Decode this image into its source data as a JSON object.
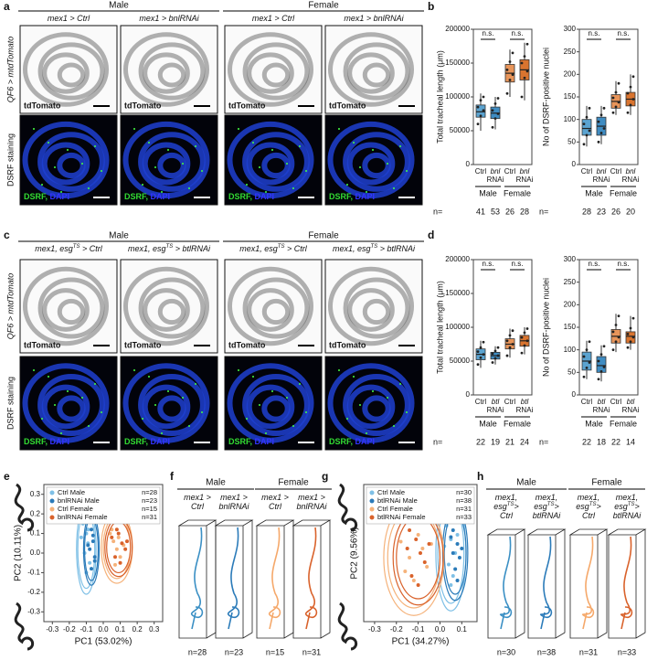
{
  "figure": {
    "panel_letters": [
      "a",
      "b",
      "c",
      "d",
      "e",
      "f",
      "g",
      "h"
    ],
    "a": {
      "sexes": [
        "Male",
        "Female"
      ],
      "columns": [
        [
          [
            "mex1 > Ctrl"
          ]
        ],
        [
          [
            "mex1 > bnlRNAi"
          ]
        ],
        [
          [
            "mex1 > Ctrl"
          ]
        ],
        [
          [
            "mex1 > bnlRNAi"
          ]
        ]
      ],
      "rows": [
        "QF6 > mtdTomato",
        "DSRF staining"
      ],
      "caption_top": "tdTomato",
      "caption_bottom": [
        "DSRF,",
        " DAPI"
      ]
    },
    "c": {
      "sexes": [
        "Male",
        "Female"
      ],
      "columns": [
        [
          [
            "mex1, esg",
            "TS",
            " > Ctrl"
          ]
        ],
        [
          [
            "mex1, esg",
            "TS",
            " > btlRNAi"
          ]
        ],
        [
          [
            "mex1, esg",
            "TS",
            " > Ctrl"
          ]
        ],
        [
          [
            "mex1, esg",
            "TS",
            " > btlRNAi"
          ]
        ]
      ],
      "rows": [
        "QF6 > mtdTomato",
        "DSRF staining"
      ],
      "caption_top": "tdTomato",
      "caption_bottom": [
        "DSRF,",
        " DAPI"
      ]
    },
    "f": {
      "sexes": [
        "Male",
        "Female"
      ],
      "columns": [
        [
          [
            "mex1 >"
          ],
          [
            "Ctrl"
          ]
        ],
        [
          [
            "mex1 >"
          ],
          [
            "bnlRNAi"
          ]
        ],
        [
          [
            "mex1 >"
          ],
          [
            "Ctrl"
          ]
        ],
        [
          [
            "mex1 >"
          ],
          [
            "bnlRNAi"
          ]
        ]
      ],
      "n": [
        "n=28",
        "n=23",
        "n=15",
        "n=31"
      ]
    },
    "h": {
      "sexes": [
        "Male",
        "Female"
      ],
      "columns": [
        [
          [
            "mex1,"
          ],
          [
            "esg",
            "TS",
            ">"
          ],
          [
            "Ctrl"
          ]
        ],
        [
          [
            "mex1,"
          ],
          [
            "esg",
            "TS",
            ">"
          ],
          [
            "btlRNAi"
          ]
        ],
        [
          [
            "mex1,"
          ],
          [
            "esg",
            "TS",
            ">"
          ],
          [
            "Ctrl"
          ]
        ],
        [
          [
            "mex1,"
          ],
          [
            "esg",
            "TS",
            ">"
          ],
          [
            "btlRNAi"
          ]
        ]
      ],
      "n": [
        "n=30",
        "n=38",
        "n=31",
        "n=33"
      ]
    }
  },
  "chart_data": [
    {
      "type": "box",
      "ylabel": "Total tracheal length (μm)",
      "ylim": [
        0,
        200000
      ],
      "yticks": [
        0,
        50000,
        100000,
        150000,
        200000
      ],
      "categories": [
        [
          "Ctrl"
        ],
        [
          "bnl",
          "RNAi"
        ],
        [
          "Ctrl"
        ],
        [
          "bnl",
          "RNAi"
        ]
      ],
      "groups": [
        "Male",
        "Female"
      ],
      "annotations": [
        "n.s.",
        "n.s."
      ],
      "colors": [
        "#5ba3d0",
        "#3f8cc2",
        "#e8955a",
        "#d9742f"
      ],
      "n_label": "n=",
      "n": [
        41,
        53,
        26,
        28
      ],
      "boxes": [
        {
          "min": 50000,
          "q1": 70000,
          "median": 78000,
          "q3": 88000,
          "max": 105000
        },
        {
          "min": 52000,
          "q1": 68000,
          "median": 76000,
          "q3": 85000,
          "max": 100000
        },
        {
          "min": 100000,
          "q1": 122000,
          "median": 135000,
          "q3": 148000,
          "max": 170000
        },
        {
          "min": 95000,
          "q1": 125000,
          "median": 140000,
          "q3": 155000,
          "max": 180000
        }
      ],
      "points": [
        [
          60000,
          72000,
          80000,
          85000,
          95000,
          100000
        ],
        [
          55000,
          68000,
          75000,
          80000,
          90000,
          98000
        ],
        [
          105000,
          125000,
          133000,
          140000,
          152000,
          165000
        ],
        [
          100000,
          128000,
          138000,
          150000,
          160000,
          178000
        ]
      ]
    },
    {
      "type": "box",
      "ylabel": "No of DSRF-positive nuclei",
      "ylim": [
        0,
        300
      ],
      "yticks": [
        0,
        50,
        100,
        150,
        200,
        250,
        300
      ],
      "categories": [
        [
          "Ctrl"
        ],
        [
          "bnl",
          "RNAi"
        ],
        [
          "Ctrl"
        ],
        [
          "bnl",
          "RNAi"
        ]
      ],
      "groups": [
        "Male",
        "Female"
      ],
      "annotations": [
        "n.s.",
        "n.s."
      ],
      "colors": [
        "#5ba3d0",
        "#3f8cc2",
        "#e8955a",
        "#d9742f"
      ],
      "n_label": "n=",
      "n": [
        28,
        23,
        26,
        20
      ],
      "boxes": [
        {
          "min": 40,
          "q1": 65,
          "median": 80,
          "q3": 100,
          "max": 130
        },
        {
          "min": 45,
          "q1": 65,
          "median": 85,
          "q3": 105,
          "max": 130
        },
        {
          "min": 110,
          "q1": 125,
          "median": 140,
          "q3": 155,
          "max": 185
        },
        {
          "min": 110,
          "q1": 130,
          "median": 145,
          "q3": 160,
          "max": 200
        }
      ],
      "points": [
        [
          45,
          65,
          75,
          90,
          105,
          125
        ],
        [
          50,
          70,
          80,
          95,
          110,
          125
        ],
        [
          115,
          128,
          138,
          148,
          160,
          180
        ],
        [
          115,
          132,
          145,
          158,
          172,
          195
        ]
      ]
    },
    {
      "type": "box",
      "ylabel": "Total tracheal length (μm)",
      "ylim": [
        0,
        200000
      ],
      "yticks": [
        0,
        50000,
        100000,
        150000,
        200000
      ],
      "categories": [
        [
          "Ctrl"
        ],
        [
          "btl",
          "RNAi"
        ],
        [
          "Ctrl"
        ],
        [
          "btl",
          "RNAi"
        ]
      ],
      "groups": [
        "Male",
        "Female"
      ],
      "annotations": [
        "n.s.",
        "n.s."
      ],
      "colors": [
        "#5ba3d0",
        "#3f8cc2",
        "#e8955a",
        "#d9742f"
      ],
      "n_label": "n=",
      "n": [
        22,
        19,
        21,
        24
      ],
      "boxes": [
        {
          "min": 40000,
          "q1": 52000,
          "median": 60000,
          "q3": 68000,
          "max": 80000
        },
        {
          "min": 45000,
          "q1": 53000,
          "median": 58000,
          "q3": 63000,
          "max": 72000
        },
        {
          "min": 55000,
          "q1": 68000,
          "median": 75000,
          "q3": 83000,
          "max": 98000
        },
        {
          "min": 60000,
          "q1": 72000,
          "median": 80000,
          "q3": 88000,
          "max": 100000
        }
      ],
      "points": [
        [
          45000,
          55000,
          60000,
          64000,
          70000,
          78000
        ],
        [
          48000,
          54000,
          58000,
          61000,
          65000,
          70000
        ],
        [
          58000,
          70000,
          75000,
          80000,
          88000,
          95000
        ],
        [
          62000,
          73000,
          80000,
          85000,
          92000,
          98000
        ]
      ]
    },
    {
      "type": "box",
      "ylabel": "No of DSRF-positive nuclei",
      "ylim": [
        0,
        300
      ],
      "yticks": [
        0,
        50,
        100,
        150,
        200,
        250,
        300
      ],
      "categories": [
        [
          "Ctrl"
        ],
        [
          "btl",
          "RNAi"
        ],
        [
          "Ctrl"
        ],
        [
          "btl",
          "RNAi"
        ]
      ],
      "groups": [
        "Male",
        "Female"
      ],
      "annotations": [
        "n.s.",
        "n.s."
      ],
      "colors": [
        "#5ba3d0",
        "#3f8cc2",
        "#e8955a",
        "#d9742f"
      ],
      "n_label": "n=",
      "n": [
        22,
        18,
        22,
        14
      ],
      "boxes": [
        {
          "min": 35,
          "q1": 55,
          "median": 75,
          "q3": 95,
          "max": 120
        },
        {
          "min": 30,
          "q1": 50,
          "median": 65,
          "q3": 85,
          "max": 110
        },
        {
          "min": 95,
          "q1": 115,
          "median": 130,
          "q3": 145,
          "max": 180
        },
        {
          "min": 100,
          "q1": 115,
          "median": 130,
          "q3": 140,
          "max": 175
        }
      ],
      "points": [
        [
          40,
          60,
          72,
          85,
          100,
          118
        ],
        [
          35,
          52,
          62,
          75,
          90,
          108
        ],
        [
          100,
          118,
          128,
          140,
          155,
          175
        ],
        [
          105,
          118,
          128,
          135,
          148,
          170
        ]
      ]
    },
    {
      "type": "scatter",
      "xlabel": "PC1 (53.02%)",
      "ylabel": "PC2 (10.11%)",
      "xlim": [
        -0.35,
        0.35
      ],
      "ylim": [
        -0.35,
        0.35
      ],
      "xticks": [
        -0.3,
        -0.2,
        -0.1,
        {
          "value": 0,
          "label": "0.0"
        },
        0.1,
        0.2,
        0.3
      ],
      "yticks": [
        -0.3,
        -0.2,
        -0.1,
        {
          "value": 0,
          "label": "0.0"
        },
        0.1,
        0.2,
        0.3
      ],
      "series": [
        {
          "name": "Ctrl Male",
          "count": "n=28",
          "color": "#7fc0e6",
          "x": [
            -0.12,
            -0.1,
            -0.09,
            -0.11,
            -0.08,
            -0.1,
            -0.13,
            -0.09
          ],
          "y": [
            0.15,
            0.1,
            0.05,
            0.0,
            -0.05,
            -0.1,
            0.08,
            0.12
          ],
          "ellipse": {
            "cx": -0.1,
            "cy": 0.02,
            "rx": 0.05,
            "ry": 0.2
          }
        },
        {
          "name": "bnlRNAi Male",
          "count": "n=23",
          "color": "#2b7bb9",
          "x": [
            -0.07,
            -0.06,
            -0.08,
            -0.05,
            -0.07,
            -0.06,
            -0.09,
            -0.05
          ],
          "y": [
            0.12,
            0.06,
            0.02,
            -0.02,
            -0.08,
            0.09,
            0.04,
            -0.04
          ],
          "ellipse": {
            "cx": -0.07,
            "cy": 0.02,
            "rx": 0.04,
            "ry": 0.16
          }
        },
        {
          "name": "Ctrl Female",
          "count": "n=15",
          "color": "#f5b27a",
          "x": [
            0.04,
            0.06,
            0.08,
            0.1,
            0.05,
            0.12,
            0.07,
            0.09
          ],
          "y": [
            0.1,
            0.06,
            0.02,
            -0.02,
            0.12,
            0.04,
            -0.06,
            0.08
          ],
          "ellipse": {
            "cx": 0.08,
            "cy": 0.03,
            "rx": 0.08,
            "ry": 0.16
          }
        },
        {
          "name": "bnlRNAi Female",
          "count": "n=31",
          "color": "#d9622b",
          "x": [
            0.05,
            0.08,
            0.11,
            0.13,
            0.07,
            0.1,
            0.14,
            0.09
          ],
          "y": [
            0.08,
            0.12,
            0.05,
            0.02,
            -0.02,
            -0.05,
            0.06,
            0.1
          ],
          "ellipse": {
            "cx": 0.09,
            "cy": 0.03,
            "rx": 0.07,
            "ry": 0.13
          }
        }
      ]
    },
    {
      "type": "scatter",
      "xlabel": "PC1 (34.27%)",
      "ylabel": "PC2 (9.56%)",
      "xlim": [
        -0.35,
        0.17
      ],
      "ylim": [
        -0.3,
        0.3
      ],
      "xticks": [
        -0.3,
        -0.2,
        -0.1,
        {
          "value": 0,
          "label": "0.0"
        },
        0.1
      ],
      "series": [
        {
          "name": "Ctrl Male",
          "count": "n=30",
          "color": "#7fc0e6",
          "x": [
            0.03,
            0.05,
            0.07,
            0.04,
            0.06,
            0.02,
            0.08,
            0.05
          ],
          "y": [
            0.12,
            0.06,
            0.0,
            -0.05,
            -0.1,
            0.03,
            0.08,
            -0.14
          ],
          "ellipse": {
            "cx": 0.05,
            "cy": 0.0,
            "rx": 0.06,
            "ry": 0.22
          }
        },
        {
          "name": "btlRNAi Male",
          "count": "n=38",
          "color": "#2b7bb9",
          "x": [
            0.06,
            0.08,
            0.09,
            0.07,
            0.1,
            0.05,
            0.08,
            0.06
          ],
          "y": [
            0.1,
            0.04,
            -0.02,
            -0.07,
            0.02,
            0.07,
            -0.12,
            0.0
          ],
          "ellipse": {
            "cx": 0.07,
            "cy": 0.0,
            "rx": 0.05,
            "ry": 0.18
          }
        },
        {
          "name": "Ctrl Female",
          "count": "n=31",
          "color": "#f5b27a",
          "x": [
            -0.18,
            -0.14,
            -0.1,
            -0.06,
            -0.12,
            -0.08,
            -0.16,
            -0.04
          ],
          "y": [
            0.05,
            -0.02,
            0.08,
            -0.06,
            -0.12,
            0.02,
            -0.08,
            0.04
          ],
          "ellipse": {
            "cx": -0.12,
            "cy": -0.02,
            "rx": 0.12,
            "ry": 0.22
          }
        },
        {
          "name": "btlRNAi Female",
          "count": "n=33",
          "color": "#d9622b",
          "x": [
            -0.15,
            -0.11,
            -0.07,
            -0.13,
            -0.09,
            -0.05,
            -0.1,
            -0.14
          ],
          "y": [
            0.02,
            0.06,
            -0.04,
            -0.1,
            0.0,
            0.04,
            -0.14,
            0.1
          ],
          "ellipse": {
            "cx": -0.1,
            "cy": -0.02,
            "rx": 0.1,
            "ry": 0.18
          }
        }
      ]
    }
  ]
}
